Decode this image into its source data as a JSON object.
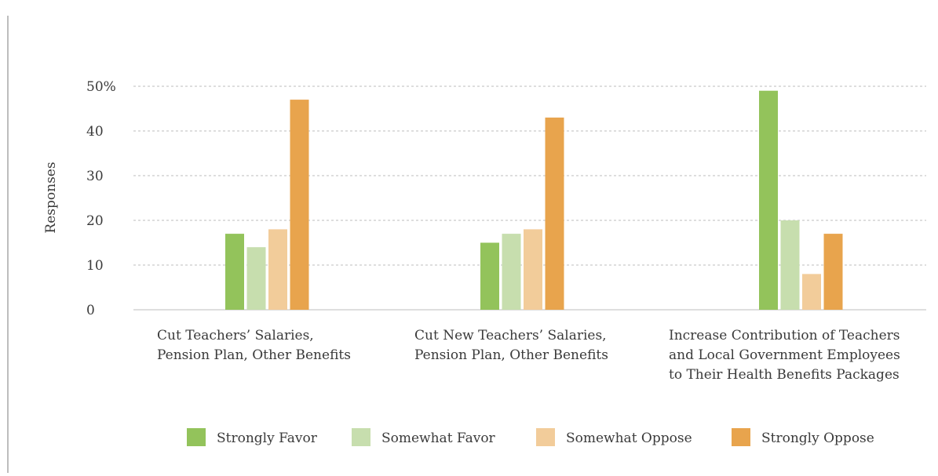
{
  "chart_data": {
    "type": "bar",
    "title": "",
    "xlabel": "",
    "ylabel": "Responses",
    "ylim": [
      0,
      50
    ],
    "yticks": [
      {
        "value": 0,
        "label": "0"
      },
      {
        "value": 10,
        "label": "10"
      },
      {
        "value": 20,
        "label": "20"
      },
      {
        "value": 30,
        "label": "30"
      },
      {
        "value": 40,
        "label": "40"
      },
      {
        "value": 50,
        "label": "50%"
      }
    ],
    "grid": "horizontal-dashed",
    "legend_position": "bottom",
    "categories": [
      [
        "Cut Teachers’ Salaries,",
        "Pension Plan, Other Benefits"
      ],
      [
        "Cut New Teachers’ Salaries,",
        "Pension Plan, Other Benefits"
      ],
      [
        "Increase Contribution of Teachers",
        "and Local Government Employees",
        "to Their Health Benefits Packages"
      ]
    ],
    "series": [
      {
        "name": "Strongly Favor",
        "color": "#93c35b",
        "values": [
          17,
          15,
          49
        ]
      },
      {
        "name": "Somewhat Favor",
        "color": "#c7deae",
        "values": [
          14,
          17,
          20
        ]
      },
      {
        "name": "Somewhat Oppose",
        "color": "#f2cc9a",
        "values": [
          18,
          18,
          8
        ]
      },
      {
        "name": "Strongly Oppose",
        "color": "#e8a44d",
        "values": [
          47,
          43,
          17
        ]
      }
    ]
  }
}
